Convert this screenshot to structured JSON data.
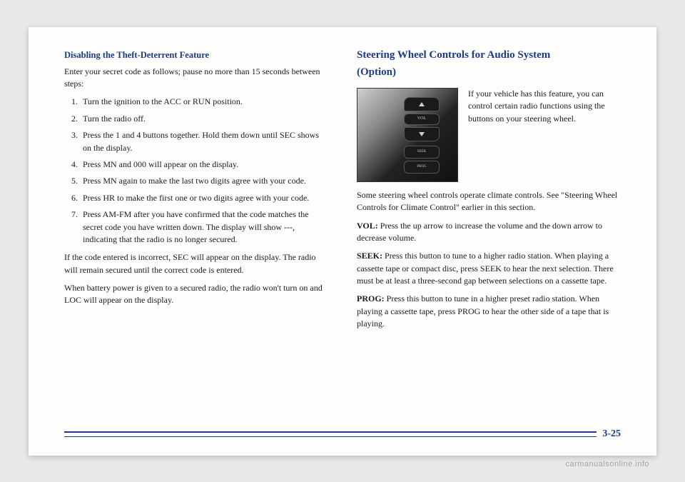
{
  "left": {
    "heading": "Disabling the Theft-Deterrent Feature",
    "intro": "Enter your secret code as follows; pause no more than 15 seconds between steps:",
    "steps": [
      "Turn the ignition to the ACC or RUN position.",
      "Turn the radio off.",
      "Press the 1 and 4 buttons together. Hold them down until SEC shows on the display.",
      "Press MN and 000 will appear on the display.",
      "Press MN again to make the last two digits agree with your code.",
      "Press HR to make the first one or two digits agree with your code.",
      "Press AM-FM after you have confirmed that the code matches the secret code you have written down. The display will show ---, indicating that the radio is no longer secured."
    ],
    "p1": "If the code entered is incorrect, SEC will appear on the display. The radio will remain secured until the correct code is entered.",
    "p2": "When battery power is given to a secured radio, the radio won't turn on and LOC will appear on the display."
  },
  "right": {
    "heading_line1": "Steering Wheel Controls for Audio System",
    "heading_line2": "(Option)",
    "img_side": "If your vehicle has this feature, you can control certain radio functions using the buttons on your steering wheel.",
    "p1": "Some steering wheel controls operate climate controls. See \"Steering Wheel Controls for Climate Control\" earlier in this section.",
    "vol_label": "VOL:",
    "vol_text": " Press the up arrow to increase the volume and the down arrow to decrease volume.",
    "seek_label": "SEEK:",
    "seek_text": " Press this button to tune to a higher radio station. When playing a cassette tape or compact disc, press SEEK to hear the next selection. There must be at least a three-second gap between selections on a cassette tape.",
    "prog_label": "PROG:",
    "prog_text": " Press this button to tune in a higher preset radio station. When playing a cassette tape, press PROG to hear the other side of a tape that is playing.",
    "buttons": {
      "vol": "VOL",
      "seek": "SEEK",
      "prog": "PROG"
    }
  },
  "page_number": "3-25",
  "watermark": "carmanualsonline.info"
}
